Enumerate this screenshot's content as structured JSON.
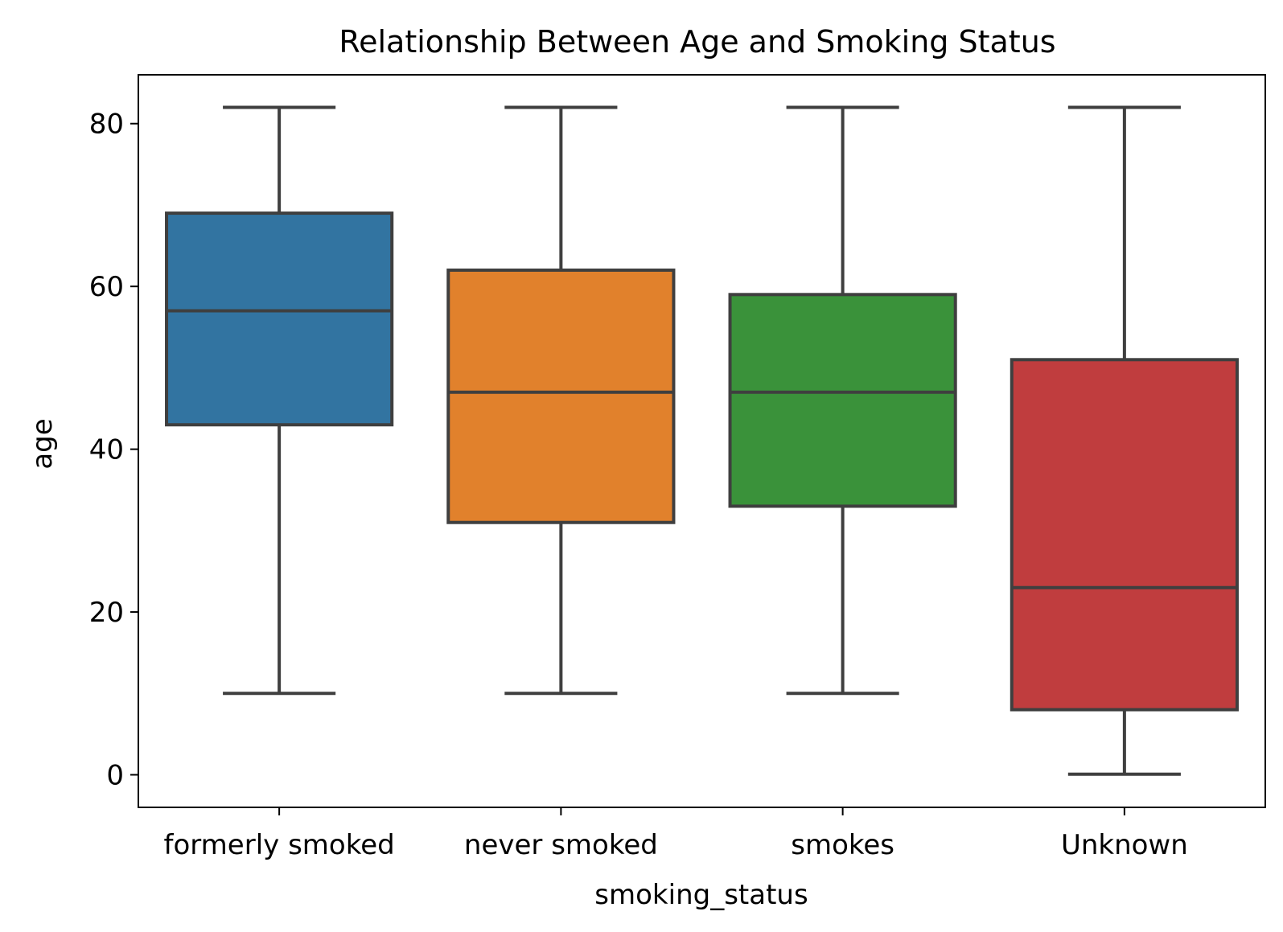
{
  "chart_data": {
    "type": "box",
    "title": "Relationship Between Age and Smoking Status",
    "xlabel": "smoking_status",
    "ylabel": "age",
    "ylim": [
      -4,
      86
    ],
    "yticks": [
      0,
      20,
      40,
      60,
      80
    ],
    "grid": false,
    "legend": "none",
    "categories": [
      "formerly smoked",
      "never smoked",
      "smokes",
      "Unknown"
    ],
    "colors": [
      "#3274a1",
      "#e1812c",
      "#3a923a",
      "#c03d3e"
    ],
    "edge_color": "#3f3f3f",
    "boxes": [
      {
        "category": "formerly smoked",
        "whisker_low": 10,
        "q1": 43,
        "median": 57,
        "q3": 69,
        "whisker_high": 82
      },
      {
        "category": "never smoked",
        "whisker_low": 10,
        "q1": 31,
        "median": 47,
        "q3": 62,
        "whisker_high": 82
      },
      {
        "category": "smokes",
        "whisker_low": 10,
        "q1": 33,
        "median": 47,
        "q3": 59,
        "whisker_high": 82
      },
      {
        "category": "Unknown",
        "whisker_low": 0.08,
        "q1": 8,
        "median": 23,
        "q3": 51,
        "whisker_high": 82
      }
    ]
  }
}
